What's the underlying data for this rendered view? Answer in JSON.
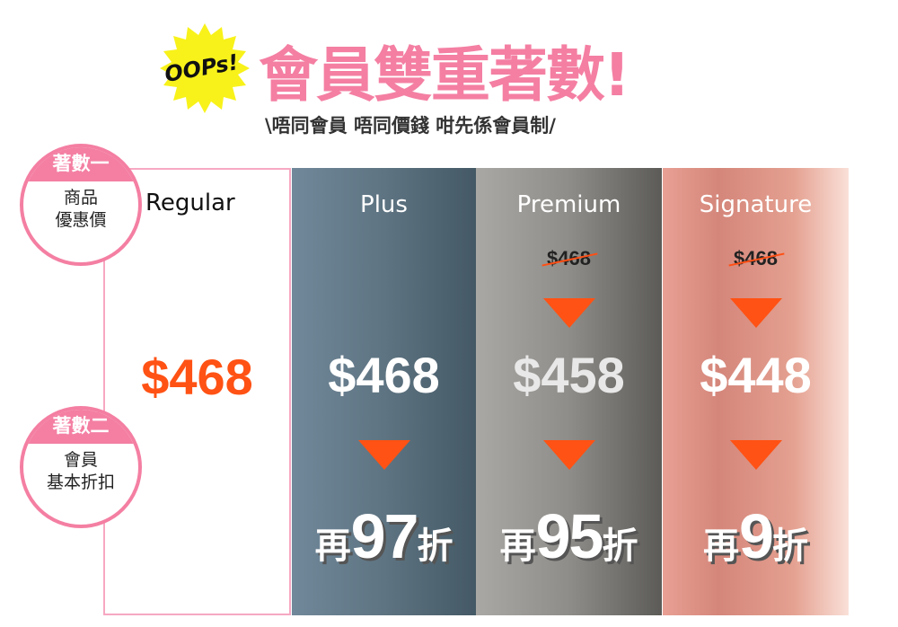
{
  "header": {
    "badge": "OOPs!",
    "title": "會員雙重著數!",
    "subtitle": "\\唔同會員 唔同價錢 咁先係會員制/"
  },
  "steps": [
    {
      "label": "著數一",
      "text_lines": [
        "商品",
        "優惠價"
      ]
    },
    {
      "label": "著數二",
      "text_lines": [
        "會員",
        "基本折扣"
      ]
    }
  ],
  "colors": {
    "pink": "#f47fa3",
    "orange": "#ff5214"
  },
  "tiers": [
    {
      "name": "Regular",
      "original_price": "",
      "price": "$468",
      "discount_prefix": "",
      "discount_value": "",
      "discount_suffix": ""
    },
    {
      "name": "Plus",
      "original_price": "",
      "price": "$468",
      "discount_prefix": "再",
      "discount_value": "97",
      "discount_suffix": "折"
    },
    {
      "name": "Premium",
      "original_price": "$468",
      "price": "$458",
      "discount_prefix": "再",
      "discount_value": "95",
      "discount_suffix": "折"
    },
    {
      "name": "Signature",
      "original_price": "$468",
      "price": "$448",
      "discount_prefix": "再",
      "discount_value": "9",
      "discount_suffix": "折"
    }
  ]
}
